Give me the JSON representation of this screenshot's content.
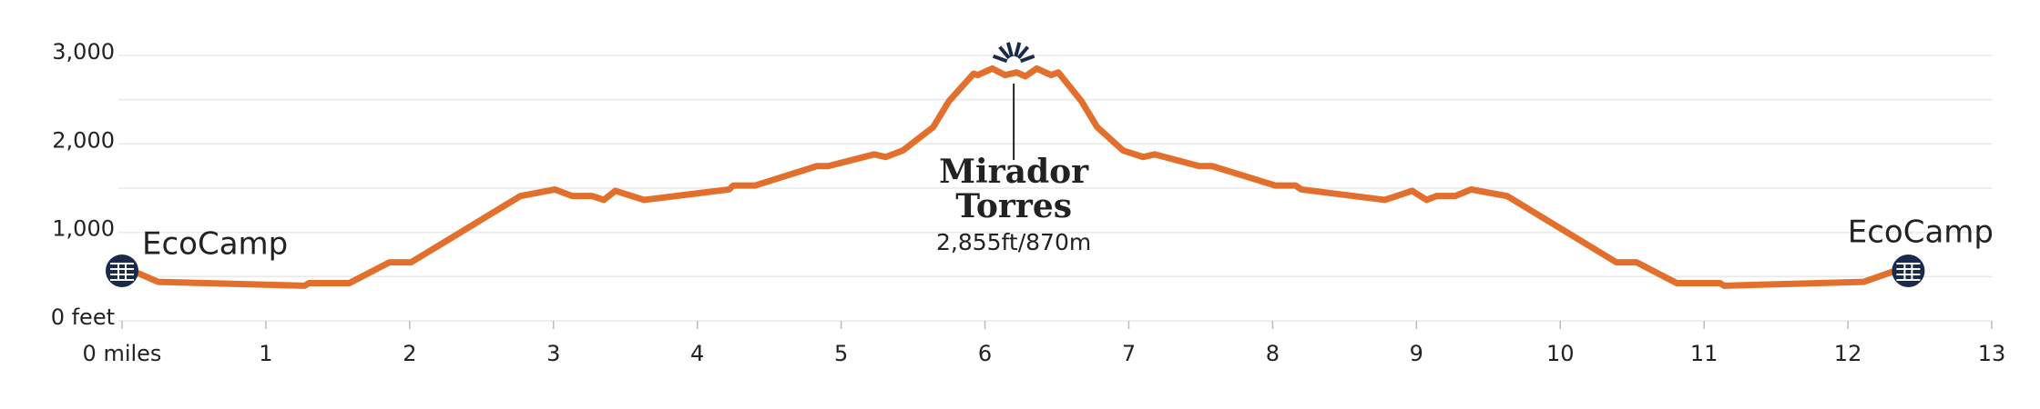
{
  "chart_data": {
    "type": "line",
    "x": [
      0,
      0.25,
      1.27,
      1.3,
      1.58,
      1.86,
      2.01,
      2.77,
      3.01,
      3.13,
      3.27,
      3.35,
      3.43,
      3.63,
      4.22,
      4.25,
      4.4,
      4.83,
      4.91,
      5.23,
      5.31,
      5.43,
      5.64,
      5.75,
      5.92,
      5.95,
      6.05,
      6.14,
      6.22,
      6.28,
      6.36,
      6.46,
      6.51,
      6.67,
      6.78,
      6.96,
      7.1,
      7.18,
      7.49,
      7.58,
      8.02,
      8.16,
      8.2,
      8.78,
      8.97,
      9.07,
      9.14,
      9.27,
      9.38,
      9.63,
      10.39,
      10.53,
      10.81,
      11.11,
      11.14,
      12.11,
      12.42
    ],
    "series": [
      {
        "color": "#e36f2c",
        "values": [
          617,
          441,
          397,
          426,
          426,
          662,
          662,
          1411,
          1485,
          1411,
          1411,
          1367,
          1470,
          1367,
          1485,
          1529,
          1529,
          1749,
          1749,
          1882,
          1852,
          1926,
          2190,
          2484,
          2793,
          2778,
          2852,
          2778,
          2808,
          2764,
          2852,
          2778,
          2808,
          2484,
          2190,
          1926,
          1852,
          1882,
          1749,
          1749,
          1529,
          1529,
          1485,
          1367,
          1470,
          1367,
          1411,
          1411,
          1485,
          1411,
          662,
          662,
          426,
          426,
          397,
          441,
          617
        ]
      }
    ],
    "xlim": [
      0,
      13
    ],
    "xticks": [
      {
        "value": 0,
        "label": "0 miles"
      },
      1,
      2,
      3,
      4,
      5,
      6,
      7,
      8,
      9,
      10,
      11,
      12,
      13
    ],
    "ylim": [
      0,
      3000
    ],
    "yticks": [
      {
        "value": 0,
        "label": "0 feet"
      },
      {
        "value": 1000,
        "label": "1,000"
      },
      {
        "value": 2000,
        "label": "2,000"
      },
      {
        "value": 3000,
        "label": "3,000"
      }
    ],
    "ygrid": [
      0,
      500,
      1000,
      1500,
      2000,
      2500,
      3000
    ],
    "annotations": [
      {
        "label": "EcoCamp",
        "x": 0,
        "y": 617,
        "side": "left"
      },
      {
        "label": "EcoCamp",
        "x": 12.42,
        "y": 617,
        "side": "right"
      }
    ],
    "summit": {
      "name": "Mirador Torres",
      "detail": "2,855ft/870m",
      "x": 6.2
    }
  }
}
